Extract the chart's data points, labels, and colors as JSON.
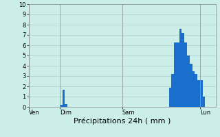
{
  "background_color": "#cceee8",
  "bar_color": "#1a6ecc",
  "ylim": [
    0,
    10
  ],
  "yticks": [
    0,
    1,
    2,
    3,
    4,
    5,
    6,
    7,
    8,
    9,
    10
  ],
  "grid_color": "#aacccc",
  "n_bars": 72,
  "bar_values": [
    0,
    0,
    0,
    0,
    0,
    0,
    0,
    0,
    0,
    0,
    0,
    0,
    0.2,
    1.7,
    0.3,
    0,
    0,
    0,
    0,
    0,
    0,
    0,
    0,
    0,
    0,
    0,
    0,
    0,
    0,
    0,
    0,
    0,
    0,
    0,
    0,
    0,
    0,
    0,
    0,
    0,
    0,
    0,
    0,
    0,
    0,
    0,
    0,
    0,
    0,
    0,
    0,
    0,
    0,
    0,
    1.9,
    3.2,
    6.3,
    6.3,
    7.6,
    7.2,
    6.3,
    5.0,
    4.2,
    3.5,
    3.2,
    2.6,
    2.6,
    1.0,
    0,
    0,
    0,
    0
  ],
  "day_labels": [
    "Ven",
    "Dim",
    "Sam",
    "Lun"
  ],
  "day_positions": [
    0,
    12,
    36,
    66
  ],
  "xlabel": "Précipitations 24h ( mm )",
  "xlabel_fontsize": 8,
  "ytick_fontsize": 6,
  "xtick_fontsize": 6
}
